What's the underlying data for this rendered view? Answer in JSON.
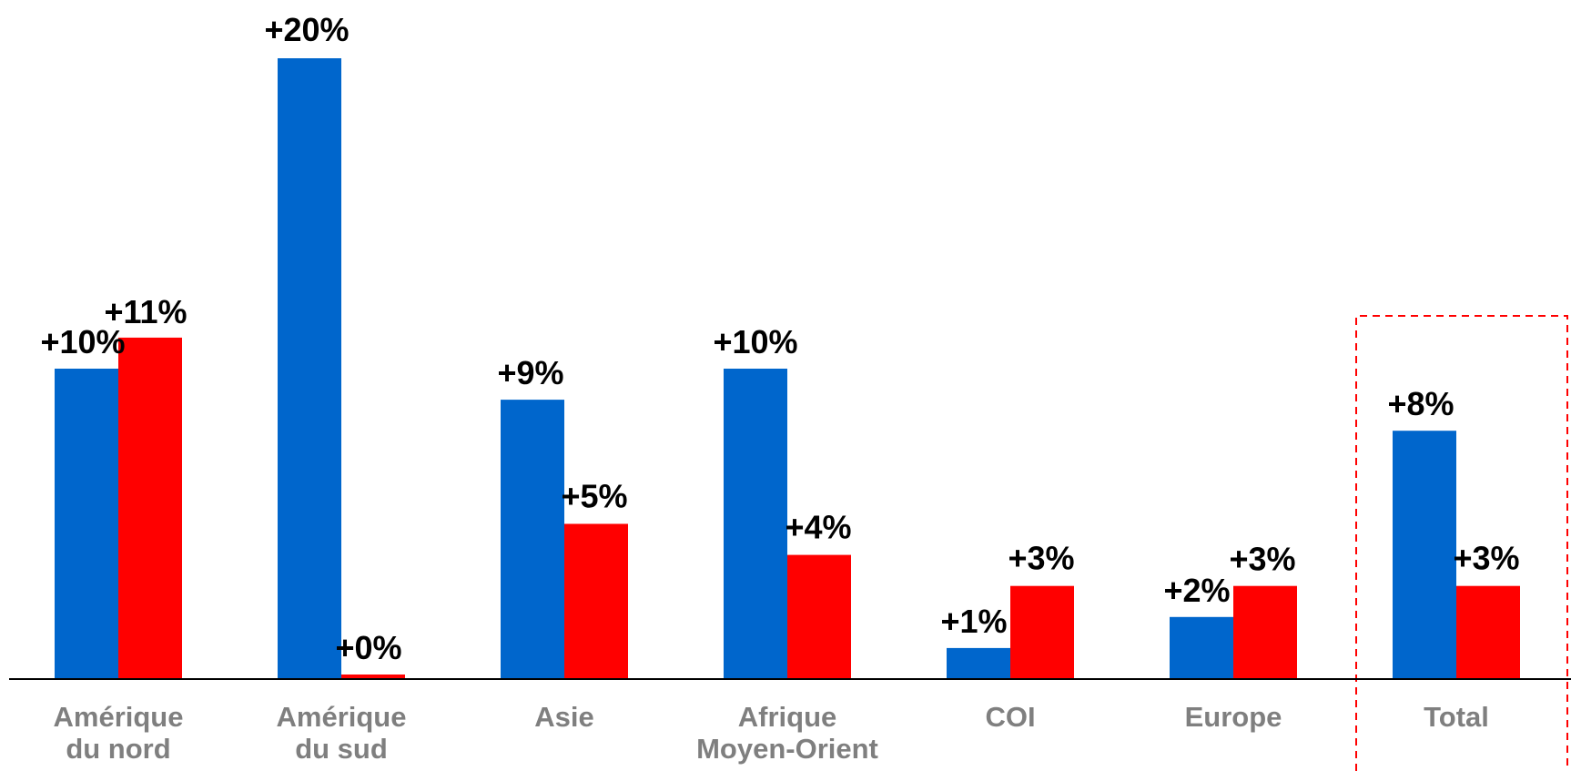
{
  "chart_data": {
    "type": "bar",
    "categories": [
      [
        "Amérique",
        "du nord"
      ],
      [
        "Amérique",
        "du sud"
      ],
      [
        "Asie"
      ],
      [
        "Afrique",
        "Moyen-Orient"
      ],
      [
        "COI"
      ],
      [
        "Europe"
      ],
      [
        "Total"
      ]
    ],
    "series": [
      {
        "color": "#0066CC",
        "values": [
          10,
          20,
          9,
          10,
          1,
          2,
          8
        ],
        "labels": [
          "+10%",
          "+20%",
          "+9%",
          "+10%",
          "+1%",
          "+2%",
          "+8%"
        ]
      },
      {
        "color": "#FF0000",
        "values": [
          11,
          0,
          5,
          4,
          3,
          3,
          3
        ],
        "labels": [
          "+11%",
          "+0%",
          "+5%",
          "+4%",
          "+3%",
          "+3%",
          "+3%"
        ]
      }
    ],
    "ylim": [
      0,
      20
    ],
    "grid": false,
    "legend": "none",
    "highlight": {
      "category_index": 6,
      "color": "#FF0000",
      "style": "dashed-box"
    },
    "title": "",
    "xlabel": "",
    "ylabel": ""
  }
}
